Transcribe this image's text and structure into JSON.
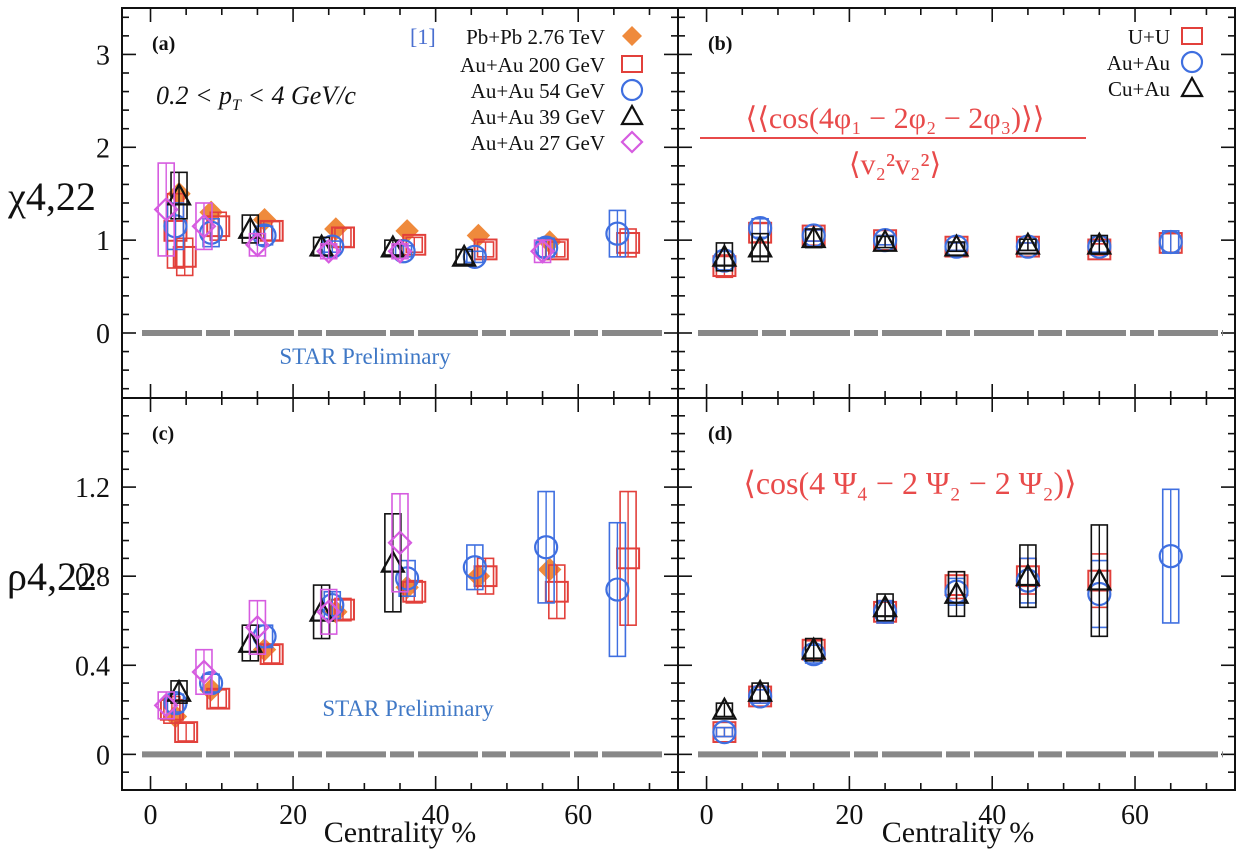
{
  "figure": {
    "xlabel": "Centrality %",
    "ylabel_top": "χ4,22",
    "ylabel_bottom": "ρ4,22"
  },
  "colors": {
    "Pb+Pb": "#ef8a3c",
    "Au+Au 200": "#e2403b",
    "Au+Au 54": "#3f6fe0",
    "Au+Au 39": "#111111",
    "Au+Au 27": "#d65ce0",
    "U+U": "#e2403b",
    "Au+Au": "#3f6fe0",
    "Cu+Au": "#111111",
    "baseline": "#888888",
    "star": "#3f78c6",
    "formula": "#e84a4a"
  },
  "chart_data": [
    {
      "type": "scatter",
      "panel_label": "(a)",
      "xlim": [
        -4,
        74
      ],
      "ylim": [
        -0.7,
        3.5
      ],
      "yticks": [
        0,
        1,
        2,
        3
      ],
      "xticks": [
        0,
        20,
        40,
        60
      ],
      "annotation_range": "0.2 < p",
      "annotation_range_sub": "T",
      "annotation_range_tail": " < 4 GeV/c",
      "preliminary": "STAR Preliminary",
      "legend_ref": "[1]",
      "series": [
        {
          "name": "Pb+Pb 2.76 TeV",
          "marker": "diamond-filled",
          "x": [
            4,
            8.5,
            16,
            26,
            36,
            46,
            56
          ],
          "y": [
            1.5,
            1.3,
            1.22,
            1.12,
            1.1,
            1.05,
            0.98
          ],
          "err": [
            0.15,
            0.08,
            0.06,
            0.04,
            0.04,
            0.04,
            0.05
          ]
        },
        {
          "name": "Au+Au 200 GeV",
          "marker": "square-open",
          "x": [
            3.5,
            4.8,
            9.5,
            17,
            27,
            37,
            47,
            57,
            67
          ],
          "y": [
            1.1,
            0.82,
            1.15,
            1.1,
            1.03,
            0.95,
            0.9,
            0.9,
            0.97
          ],
          "err": [
            0.4,
            0.2,
            0.15,
            0.1,
            0.1,
            0.08,
            0.08,
            0.08,
            0.15
          ]
        },
        {
          "name": "Au+Au 54 GeV",
          "marker": "circle-open",
          "x": [
            3.5,
            8.5,
            16,
            25.5,
            35.5,
            45.5,
            55.5,
            65.5
          ],
          "y": [
            1.15,
            1.08,
            1.05,
            0.93,
            0.88,
            0.82,
            0.92,
            1.07
          ],
          "err": [
            0.25,
            0.15,
            0.1,
            0.06,
            0.06,
            0.06,
            0.1,
            0.25
          ]
        },
        {
          "name": "Au+Au 39 GeV",
          "marker": "triangle-open",
          "x": [
            4,
            14,
            24,
            34,
            44
          ],
          "y": [
            1.48,
            1.12,
            0.93,
            0.92,
            0.82
          ],
          "err": [
            0.25,
            0.15,
            0.1,
            0.08,
            0.08
          ]
        },
        {
          "name": "Au+Au 27 GeV",
          "marker": "diamond-open",
          "x": [
            2.2,
            7.5,
            15,
            25,
            35,
            55
          ],
          "y": [
            1.33,
            1.15,
            0.95,
            0.88,
            0.88,
            0.88
          ],
          "err": [
            0.5,
            0.25,
            0.12,
            0.08,
            0.08,
            0.12
          ]
        }
      ]
    },
    {
      "type": "scatter",
      "panel_label": "(b)",
      "xlim": [
        -4,
        74
      ],
      "ylim": [
        -0.7,
        3.5
      ],
      "yticks": [
        0,
        1,
        2,
        3
      ],
      "xticks": [
        0,
        20,
        40,
        60
      ],
      "formula_left": "⟨⟨cos(4φ₁ − 2φ₂ − 2φ₃)⟩⟩",
      "formula_right": "⟨v₂²v₂²⟩",
      "series": [
        {
          "name": "U+U",
          "marker": "square-open",
          "x": [
            2.5,
            7.5,
            15,
            25,
            35,
            45,
            55,
            65
          ],
          "y": [
            0.72,
            1.08,
            1.05,
            1.0,
            0.93,
            0.93,
            0.9,
            0.97
          ],
          "err": [
            0.12,
            0.1,
            0.06,
            0.05,
            0.04,
            0.04,
            0.06,
            0.1
          ]
        },
        {
          "name": "Au+Au",
          "marker": "circle-open",
          "x": [
            2.5,
            7.5,
            15,
            25,
            35,
            45,
            55,
            65
          ],
          "y": [
            0.78,
            1.13,
            1.05,
            1.0,
            0.93,
            0.93,
            0.93,
            0.98
          ],
          "err": [
            0.1,
            0.1,
            0.06,
            0.05,
            0.04,
            0.04,
            0.06,
            0.12
          ]
        },
        {
          "name": "Cu+Au",
          "marker": "triangle-open",
          "x": [
            2.5,
            7.5,
            15,
            25,
            35,
            45,
            55
          ],
          "y": [
            0.82,
            0.92,
            1.02,
            0.98,
            0.93,
            0.95,
            0.95
          ],
          "err": [
            0.15,
            0.15,
            0.1,
            0.06,
            0.05,
            0.06,
            0.1
          ]
        }
      ]
    },
    {
      "type": "scatter",
      "panel_label": "(c)",
      "xlim": [
        -4,
        74
      ],
      "ylim": [
        -0.16,
        1.6
      ],
      "yticks": [
        0,
        0.4,
        0.8,
        1.2
      ],
      "ytick_labels": [
        "0",
        "0.4",
        "0.8",
        "1.2"
      ],
      "xticks": [
        0,
        20,
        40,
        60
      ],
      "xtick_labels": [
        "0",
        "20",
        "40",
        "60"
      ],
      "preliminary": "STAR Preliminary",
      "series": [
        {
          "name": "Pb+Pb 2.76 TeV",
          "marker": "diamond-filled",
          "x": [
            3.5,
            8.5,
            16,
            26,
            36,
            46,
            56
          ],
          "y": [
            0.17,
            0.29,
            0.47,
            0.64,
            0.75,
            0.8,
            0.83
          ],
          "err": [
            0.02,
            0.02,
            0.02,
            0.02,
            0.03,
            0.03,
            0.04
          ]
        },
        {
          "name": "Au+Au 200 GeV",
          "marker": "square-open",
          "x": [
            3,
            5,
            9.5,
            17,
            27,
            37,
            47,
            57,
            67
          ],
          "y": [
            0.2,
            0.1,
            0.25,
            0.45,
            0.65,
            0.73,
            0.8,
            0.73,
            0.88
          ],
          "err": [
            0.06,
            0.04,
            0.04,
            0.04,
            0.05,
            0.05,
            0.08,
            0.12,
            0.3
          ]
        },
        {
          "name": "Au+Au 54 GeV",
          "marker": "circle-open",
          "x": [
            3.5,
            8.5,
            16,
            25.5,
            36,
            45.5,
            55.5,
            65.5
          ],
          "y": [
            0.23,
            0.32,
            0.53,
            0.67,
            0.79,
            0.84,
            0.93,
            0.74
          ],
          "err": [
            0.04,
            0.04,
            0.05,
            0.06,
            0.08,
            0.1,
            0.25,
            0.3
          ]
        },
        {
          "name": "Au+Au 39 GeV",
          "marker": "triangle-open",
          "x": [
            4,
            14,
            24,
            34
          ],
          "y": [
            0.28,
            0.5,
            0.64,
            0.86
          ],
          "err": [
            0.05,
            0.08,
            0.12,
            0.22
          ]
        },
        {
          "name": "Au+Au 27 GeV",
          "marker": "diamond-open",
          "x": [
            2.2,
            7.5,
            15,
            25,
            35
          ],
          "y": [
            0.22,
            0.37,
            0.57,
            0.64,
            0.95
          ],
          "err": [
            0.06,
            0.1,
            0.12,
            0.1,
            0.22
          ]
        }
      ]
    },
    {
      "type": "scatter",
      "panel_label": "(d)",
      "xlim": [
        -4,
        74
      ],
      "ylim": [
        -0.16,
        1.6
      ],
      "yticks": [
        0,
        0.4,
        0.8,
        1.2
      ],
      "xticks": [
        0,
        20,
        40,
        60
      ],
      "xtick_labels": [
        "0",
        "20",
        "40",
        "60"
      ],
      "formula": "⟨cos(4 Ψ₄ − 2 Ψ₂ − 2 Ψ₂)⟩",
      "series": [
        {
          "name": "U+U",
          "marker": "square-open",
          "x": [
            2.5,
            7.5,
            15,
            25,
            35,
            45,
            55
          ],
          "y": [
            0.1,
            0.26,
            0.47,
            0.64,
            0.76,
            0.8,
            0.78
          ],
          "err": [
            0.02,
            0.03,
            0.04,
            0.05,
            0.06,
            0.08,
            0.12
          ]
        },
        {
          "name": "Au+Au",
          "marker": "circle-open",
          "x": [
            2.5,
            7.5,
            15,
            25,
            35,
            45,
            55,
            65
          ],
          "y": [
            0.1,
            0.26,
            0.45,
            0.64,
            0.73,
            0.78,
            0.72,
            0.89
          ],
          "err": [
            0.02,
            0.03,
            0.04,
            0.05,
            0.06,
            0.1,
            0.15,
            0.3
          ]
        },
        {
          "name": "Cu+Au",
          "marker": "triangle-open",
          "x": [
            2.5,
            7.5,
            15,
            25,
            35,
            45,
            55
          ],
          "y": [
            0.2,
            0.28,
            0.47,
            0.66,
            0.72,
            0.8,
            0.78
          ],
          "err": [
            0.03,
            0.04,
            0.05,
            0.06,
            0.1,
            0.14,
            0.25
          ]
        }
      ]
    }
  ]
}
